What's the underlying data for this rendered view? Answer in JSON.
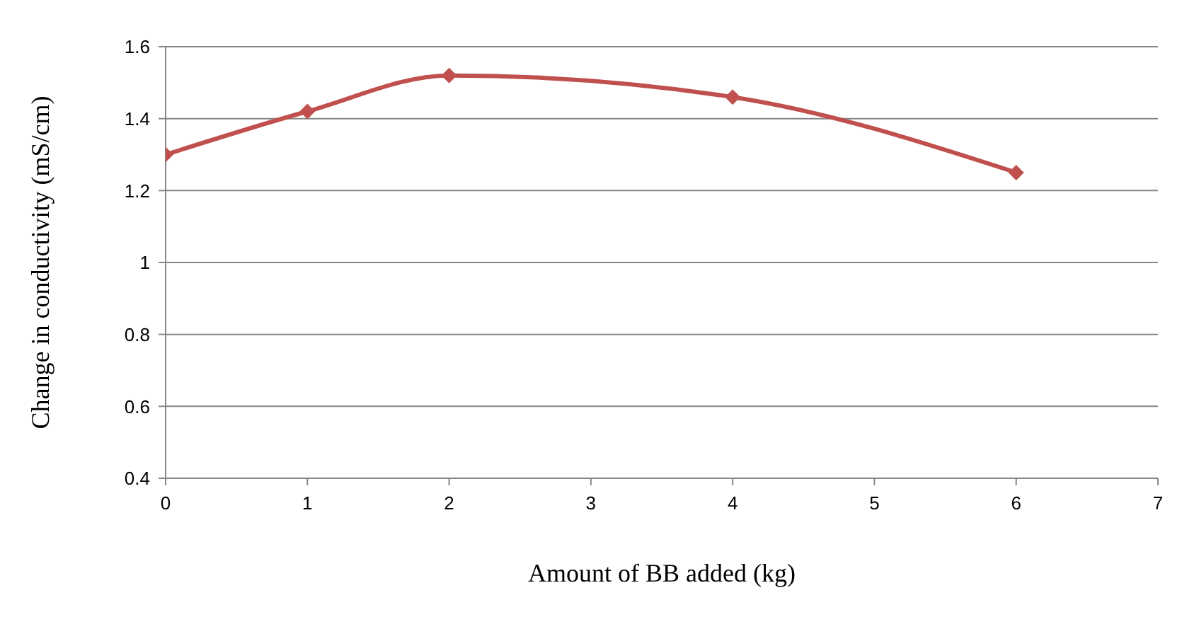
{
  "chart_data": {
    "type": "line",
    "xlabel": "Amount of BB added (kg)",
    "ylabel": "Change in conductivity (mS/cm)",
    "x": [
      0,
      1,
      2,
      4,
      6
    ],
    "series": [
      {
        "color": "#c0504d",
        "values": [
          1.3,
          1.42,
          1.52,
          1.46,
          1.25
        ]
      }
    ],
    "xlim": [
      0,
      7
    ],
    "xticks": [
      0,
      1,
      2,
      3,
      4,
      5,
      6,
      7
    ],
    "ylim": [
      0.4,
      1.6
    ],
    "yticks": [
      {
        "value": 0.4,
        "label": "0.4"
      },
      {
        "value": 0.6,
        "label": "0.6"
      },
      {
        "value": 0.8,
        "label": "0.8"
      },
      {
        "value": 1,
        "label": "1"
      },
      {
        "value": 1.2,
        "label": "1.2"
      },
      {
        "value": 1.4,
        "label": "1.4"
      },
      {
        "value": 1.6,
        "label": "1.6"
      }
    ],
    "grid": "y",
    "marker": "diamond",
    "legend": false
  }
}
